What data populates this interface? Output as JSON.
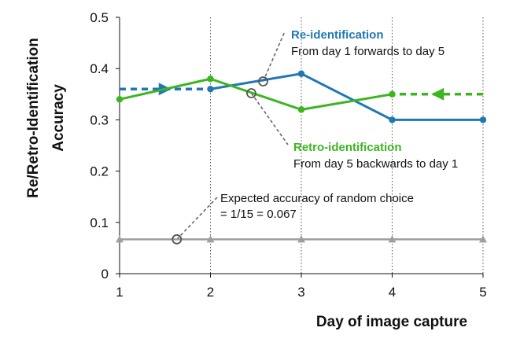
{
  "chart_data": {
    "type": "line",
    "title": "",
    "xlabel": "Day of image capture",
    "ylabel_lines": [
      "Re/Retro-Identification",
      "Accuracy"
    ],
    "x": [
      1,
      2,
      3,
      4,
      5
    ],
    "xlim": [
      1,
      5
    ],
    "ylim": [
      0,
      0.5
    ],
    "x_ticks": [
      "1",
      "2",
      "3",
      "4",
      "5"
    ],
    "y_ticks": [
      "0",
      "0.1",
      "0.2",
      "0.3",
      "0.4",
      "0.5"
    ],
    "grid": "vertical dotted",
    "legend": "annotations",
    "series": [
      {
        "key": "reid",
        "color": "#1f78b4",
        "points": [
          [
            2,
            0.36
          ],
          [
            3,
            0.39
          ],
          [
            4,
            0.3
          ],
          [
            5,
            0.3
          ]
        ],
        "dashed_arrow": {
          "from": [
            1,
            0.36
          ],
          "to": [
            2,
            0.36
          ],
          "direction": "forward"
        }
      },
      {
        "key": "retro",
        "color": "#3cb521",
        "points": [
          [
            1,
            0.34
          ],
          [
            2,
            0.38
          ],
          [
            3,
            0.32
          ],
          [
            4,
            0.35
          ]
        ],
        "dashed_arrow": {
          "from": [
            5,
            0.35
          ],
          "to": [
            4,
            0.35
          ],
          "direction": "backward"
        }
      },
      {
        "key": "random",
        "color": "#9e9e9e",
        "points": [
          [
            1,
            0.067
          ],
          [
            2,
            0.067
          ],
          [
            3,
            0.067
          ],
          [
            4,
            0.067
          ],
          [
            5,
            0.067
          ]
        ],
        "marker": "triangle"
      }
    ],
    "annotations": {
      "reid": {
        "title": "Re-identification",
        "subtitle": "From day 1 forwards to day 5",
        "color": "#1f78b4",
        "anchor": [
          2.58,
          0.375
        ]
      },
      "retro": {
        "title": "Retro-identification",
        "subtitle": "From day 5 backwards to day 1",
        "color": "#3cb521",
        "anchor": [
          2.45,
          0.352
        ]
      },
      "random": {
        "line1": "Expected accuracy of random choice",
        "line2": "= 1/15 = 0.067",
        "anchor": [
          1.63,
          0.067
        ]
      }
    }
  }
}
